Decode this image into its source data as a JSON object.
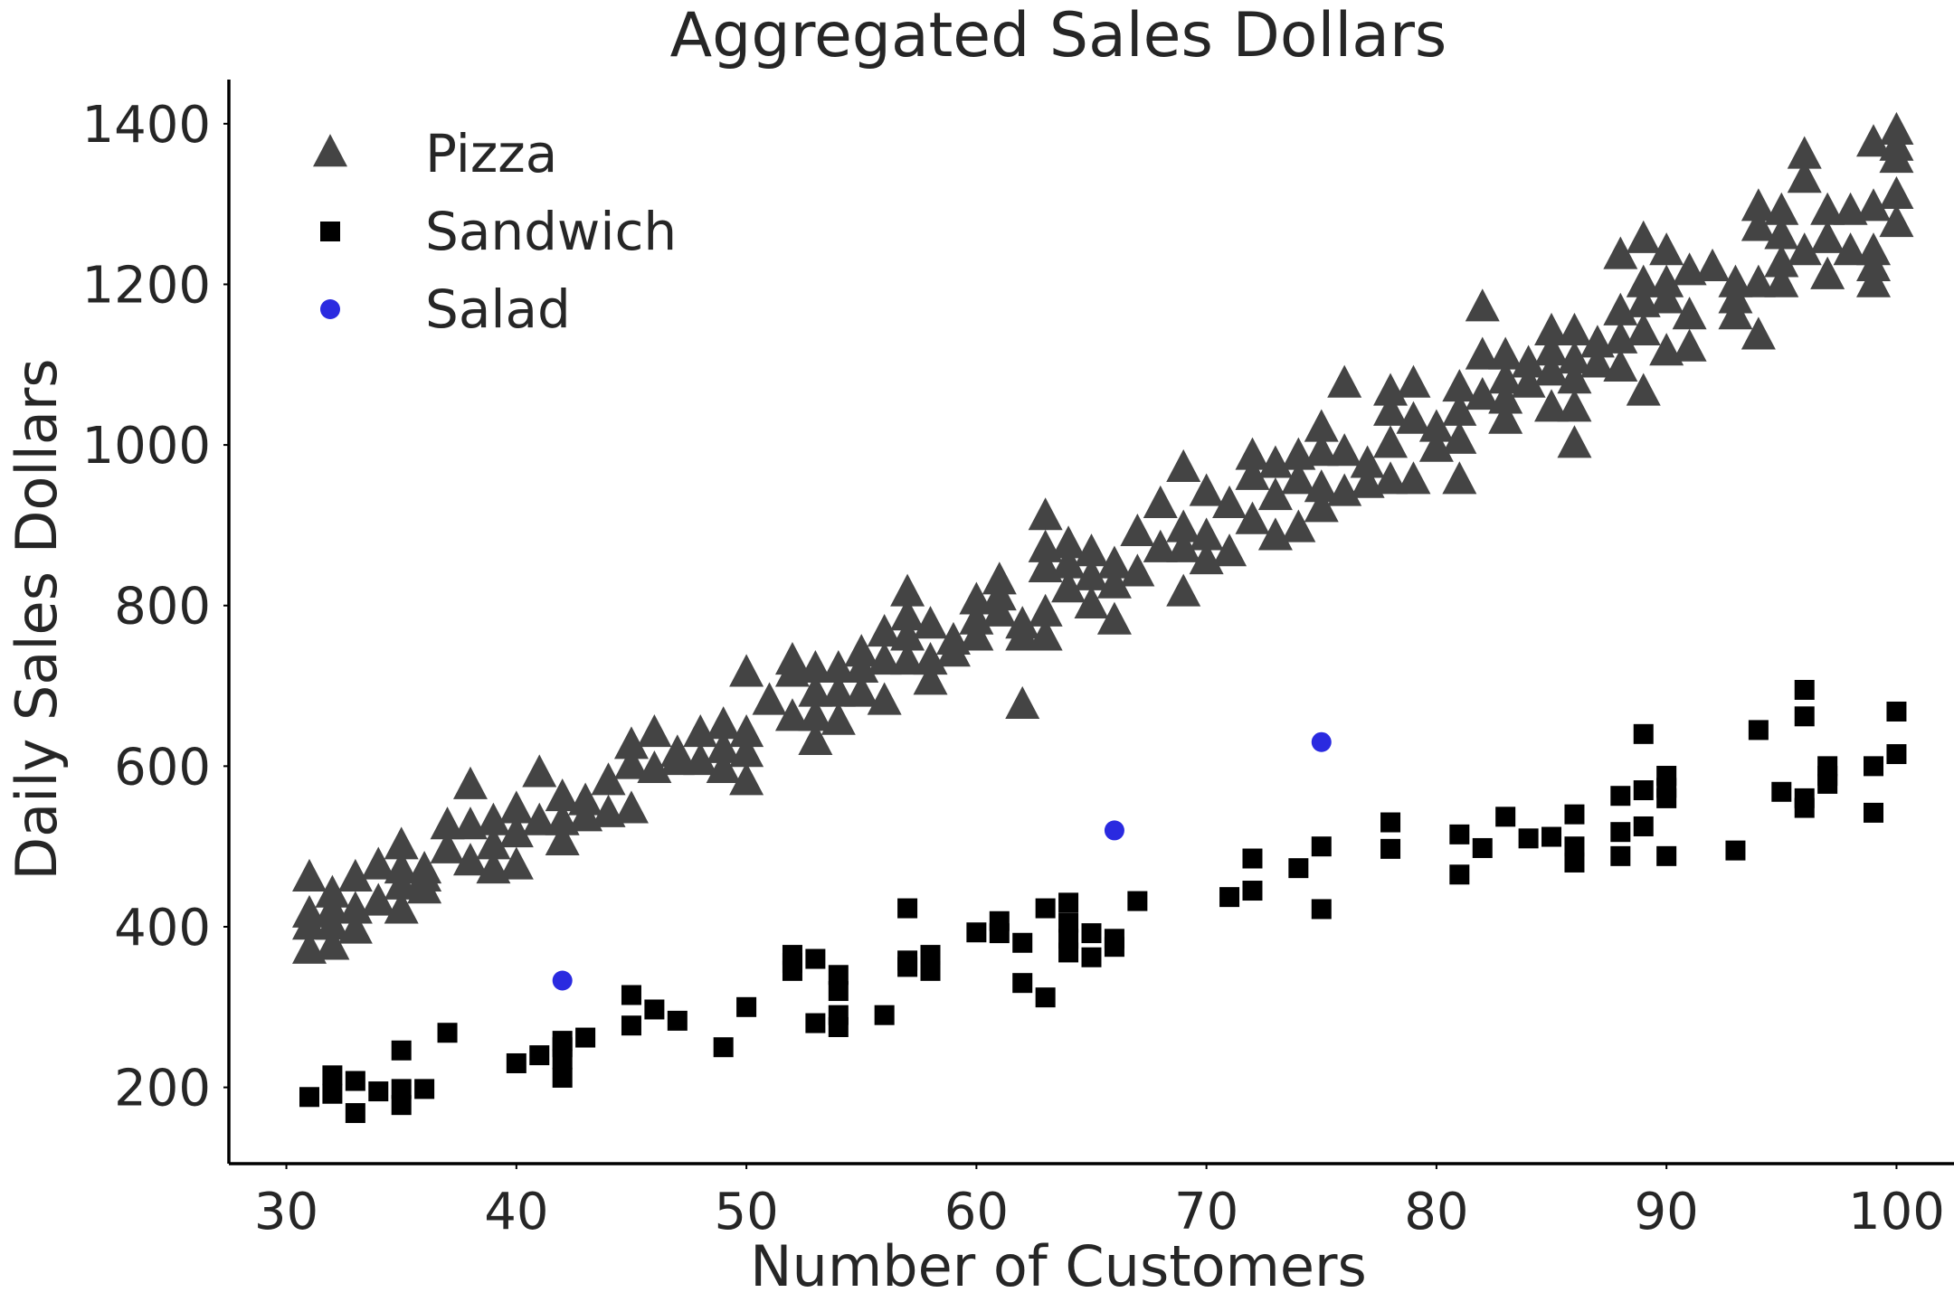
{
  "chart_data": {
    "type": "scatter",
    "title": "Aggregated Sales Dollars",
    "xlabel": "Number of Customers",
    "ylabel": "Daily Sales Dollars",
    "xlim": [
      27.5,
      102.5
    ],
    "ylim": [
      105,
      1455
    ],
    "xticks": [
      30,
      40,
      50,
      60,
      70,
      80,
      90,
      100
    ],
    "yticks": [
      200,
      400,
      600,
      800,
      1000,
      1200,
      1400
    ],
    "grid": false,
    "legend_position": "top-left",
    "series": [
      {
        "name": "Pizza",
        "marker": "triangle",
        "color": "#444444",
        "points": [
          [
            31,
            370
          ],
          [
            31,
            400
          ],
          [
            31,
            415
          ],
          [
            31,
            460
          ],
          [
            32,
            375
          ],
          [
            32,
            400
          ],
          [
            32,
            420
          ],
          [
            32,
            440
          ],
          [
            33,
            395
          ],
          [
            33,
            420
          ],
          [
            33,
            460
          ],
          [
            34,
            430
          ],
          [
            34,
            475
          ],
          [
            35,
            420
          ],
          [
            35,
            450
          ],
          [
            35,
            470
          ],
          [
            35,
            500
          ],
          [
            36,
            445
          ],
          [
            36,
            470
          ],
          [
            36,
            460
          ],
          [
            37,
            495
          ],
          [
            37,
            525
          ],
          [
            38,
            480
          ],
          [
            38,
            525
          ],
          [
            38,
            575
          ],
          [
            39,
            470
          ],
          [
            39,
            500
          ],
          [
            39,
            530
          ],
          [
            40,
            475
          ],
          [
            40,
            515
          ],
          [
            40,
            545
          ],
          [
            41,
            530
          ],
          [
            41,
            590
          ],
          [
            42,
            505
          ],
          [
            42,
            530
          ],
          [
            42,
            560
          ],
          [
            43,
            535
          ],
          [
            43,
            555
          ],
          [
            44,
            540
          ],
          [
            44,
            580
          ],
          [
            45,
            545
          ],
          [
            45,
            600
          ],
          [
            45,
            625
          ],
          [
            46,
            595
          ],
          [
            46,
            640
          ],
          [
            47,
            605
          ],
          [
            47,
            615
          ],
          [
            48,
            605
          ],
          [
            48,
            640
          ],
          [
            49,
            595
          ],
          [
            49,
            620
          ],
          [
            49,
            650
          ],
          [
            50,
            580
          ],
          [
            50,
            615
          ],
          [
            50,
            640
          ],
          [
            50,
            715
          ],
          [
            51,
            680
          ],
          [
            52,
            660
          ],
          [
            52,
            715
          ],
          [
            52,
            730
          ],
          [
            53,
            630
          ],
          [
            53,
            660
          ],
          [
            53,
            690
          ],
          [
            53,
            720
          ],
          [
            54,
            655
          ],
          [
            54,
            690
          ],
          [
            54,
            720
          ],
          [
            55,
            690
          ],
          [
            55,
            720
          ],
          [
            55,
            740
          ],
          [
            56,
            680
          ],
          [
            56,
            730
          ],
          [
            56,
            765
          ],
          [
            57,
            730
          ],
          [
            57,
            760
          ],
          [
            57,
            785
          ],
          [
            57,
            815
          ],
          [
            58,
            705
          ],
          [
            58,
            730
          ],
          [
            58,
            775
          ],
          [
            59,
            740
          ],
          [
            59,
            755
          ],
          [
            60,
            760
          ],
          [
            60,
            780
          ],
          [
            60,
            805
          ],
          [
            61,
            790
          ],
          [
            61,
            810
          ],
          [
            61,
            830
          ],
          [
            62,
            675
          ],
          [
            62,
            760
          ],
          [
            62,
            775
          ],
          [
            63,
            760
          ],
          [
            63,
            790
          ],
          [
            63,
            845
          ],
          [
            63,
            870
          ],
          [
            63,
            910
          ],
          [
            64,
            820
          ],
          [
            64,
            850
          ],
          [
            64,
            875
          ],
          [
            65,
            800
          ],
          [
            65,
            835
          ],
          [
            65,
            865
          ],
          [
            66,
            780
          ],
          [
            66,
            825
          ],
          [
            66,
            850
          ],
          [
            67,
            840
          ],
          [
            67,
            890
          ],
          [
            68,
            870
          ],
          [
            68,
            925
          ],
          [
            69,
            815
          ],
          [
            69,
            870
          ],
          [
            69,
            895
          ],
          [
            69,
            970
          ],
          [
            70,
            855
          ],
          [
            70,
            885
          ],
          [
            70,
            940
          ],
          [
            71,
            865
          ],
          [
            71,
            925
          ],
          [
            72,
            905
          ],
          [
            72,
            960
          ],
          [
            72,
            985
          ],
          [
            73,
            885
          ],
          [
            73,
            935
          ],
          [
            73,
            975
          ],
          [
            74,
            895
          ],
          [
            74,
            955
          ],
          [
            74,
            985
          ],
          [
            75,
            920
          ],
          [
            75,
            945
          ],
          [
            75,
            990
          ],
          [
            75,
            1020
          ],
          [
            76,
            940
          ],
          [
            76,
            990
          ],
          [
            76,
            1075
          ],
          [
            77,
            950
          ],
          [
            77,
            975
          ],
          [
            78,
            955
          ],
          [
            78,
            1000
          ],
          [
            78,
            1040
          ],
          [
            78,
            1065
          ],
          [
            79,
            955
          ],
          [
            79,
            1030
          ],
          [
            79,
            1075
          ],
          [
            80,
            995
          ],
          [
            80,
            1020
          ],
          [
            81,
            955
          ],
          [
            81,
            1005
          ],
          [
            81,
            1040
          ],
          [
            81,
            1070
          ],
          [
            82,
            1060
          ],
          [
            82,
            1110
          ],
          [
            82,
            1170
          ],
          [
            83,
            1030
          ],
          [
            83,
            1055
          ],
          [
            83,
            1080
          ],
          [
            83,
            1110
          ],
          [
            84,
            1075
          ],
          [
            84,
            1100
          ],
          [
            85,
            1045
          ],
          [
            85,
            1090
          ],
          [
            85,
            1115
          ],
          [
            85,
            1140
          ],
          [
            86,
            1000
          ],
          [
            86,
            1045
          ],
          [
            86,
            1080
          ],
          [
            86,
            1105
          ],
          [
            86,
            1140
          ],
          [
            87,
            1100
          ],
          [
            87,
            1125
          ],
          [
            88,
            1095
          ],
          [
            88,
            1130
          ],
          [
            88,
            1165
          ],
          [
            88,
            1235
          ],
          [
            89,
            1065
          ],
          [
            89,
            1140
          ],
          [
            89,
            1175
          ],
          [
            89,
            1200
          ],
          [
            89,
            1255
          ],
          [
            90,
            1115
          ],
          [
            90,
            1180
          ],
          [
            90,
            1200
          ],
          [
            90,
            1240
          ],
          [
            91,
            1120
          ],
          [
            91,
            1160
          ],
          [
            91,
            1215
          ],
          [
            92,
            1220
          ],
          [
            93,
            1160
          ],
          [
            93,
            1180
          ],
          [
            93,
            1200
          ],
          [
            94,
            1135
          ],
          [
            94,
            1200
          ],
          [
            94,
            1270
          ],
          [
            94,
            1295
          ],
          [
            95,
            1200
          ],
          [
            95,
            1225
          ],
          [
            95,
            1260
          ],
          [
            95,
            1290
          ],
          [
            96,
            1240
          ],
          [
            96,
            1330
          ],
          [
            96,
            1360
          ],
          [
            97,
            1210
          ],
          [
            97,
            1255
          ],
          [
            97,
            1290
          ],
          [
            98,
            1240
          ],
          [
            98,
            1290
          ],
          [
            99,
            1200
          ],
          [
            99,
            1220
          ],
          [
            99,
            1240
          ],
          [
            99,
            1295
          ],
          [
            99,
            1375
          ],
          [
            100,
            1275
          ],
          [
            100,
            1310
          ],
          [
            100,
            1355
          ],
          [
            100,
            1370
          ],
          [
            100,
            1390
          ]
        ]
      },
      {
        "name": "Sandwich",
        "marker": "square",
        "color": "#000000",
        "points": [
          [
            31,
            188
          ],
          [
            32,
            192
          ],
          [
            32,
            215
          ],
          [
            33,
            168
          ],
          [
            33,
            208
          ],
          [
            34,
            195
          ],
          [
            35,
            178
          ],
          [
            35,
            198
          ],
          [
            35,
            246
          ],
          [
            36,
            198
          ],
          [
            37,
            268
          ],
          [
            40,
            230
          ],
          [
            41,
            240
          ],
          [
            42,
            212
          ],
          [
            42,
            235
          ],
          [
            42,
            250
          ],
          [
            42,
            258
          ],
          [
            43,
            262
          ],
          [
            45,
            277
          ],
          [
            45,
            315
          ],
          [
            46,
            297
          ],
          [
            47,
            283
          ],
          [
            49,
            250
          ],
          [
            50,
            300
          ],
          [
            52,
            345
          ],
          [
            52,
            355
          ],
          [
            52,
            365
          ],
          [
            53,
            280
          ],
          [
            53,
            360
          ],
          [
            54,
            275
          ],
          [
            54,
            290
          ],
          [
            54,
            320
          ],
          [
            54,
            340
          ],
          [
            56,
            290
          ],
          [
            57,
            350
          ],
          [
            57,
            358
          ],
          [
            57,
            423
          ],
          [
            58,
            345
          ],
          [
            58,
            365
          ],
          [
            60,
            393
          ],
          [
            61,
            392
          ],
          [
            61,
            407
          ],
          [
            62,
            330
          ],
          [
            62,
            380
          ],
          [
            63,
            312
          ],
          [
            63,
            423
          ],
          [
            64,
            368
          ],
          [
            64,
            385
          ],
          [
            64,
            405
          ],
          [
            64,
            430
          ],
          [
            65,
            362
          ],
          [
            65,
            392
          ],
          [
            66,
            375
          ],
          [
            66,
            385
          ],
          [
            67,
            432
          ],
          [
            71,
            437
          ],
          [
            72,
            445
          ],
          [
            72,
            485
          ],
          [
            74,
            473
          ],
          [
            75,
            422
          ],
          [
            75,
            500
          ],
          [
            78,
            497
          ],
          [
            78,
            530
          ],
          [
            81,
            465
          ],
          [
            81,
            515
          ],
          [
            82,
            498
          ],
          [
            83,
            537
          ],
          [
            84,
            510
          ],
          [
            85,
            512
          ],
          [
            86,
            480
          ],
          [
            86,
            500
          ],
          [
            86,
            540
          ],
          [
            88,
            488
          ],
          [
            88,
            518
          ],
          [
            88,
            563
          ],
          [
            89,
            525
          ],
          [
            89,
            570
          ],
          [
            89,
            640
          ],
          [
            90,
            488
          ],
          [
            90,
            560
          ],
          [
            90,
            573
          ],
          [
            90,
            588
          ],
          [
            93,
            495
          ],
          [
            94,
            645
          ],
          [
            95,
            568
          ],
          [
            96,
            548
          ],
          [
            96,
            560
          ],
          [
            96,
            662
          ],
          [
            96,
            695
          ],
          [
            97,
            578
          ],
          [
            97,
            588
          ],
          [
            97,
            600
          ],
          [
            99,
            542
          ],
          [
            99,
            600
          ],
          [
            100,
            615
          ],
          [
            100,
            668
          ]
        ]
      },
      {
        "name": "Salad",
        "marker": "circle",
        "color": "#2a2ae0",
        "points": [
          [
            42,
            333
          ],
          [
            66,
            520
          ],
          [
            75,
            630
          ]
        ]
      }
    ]
  }
}
